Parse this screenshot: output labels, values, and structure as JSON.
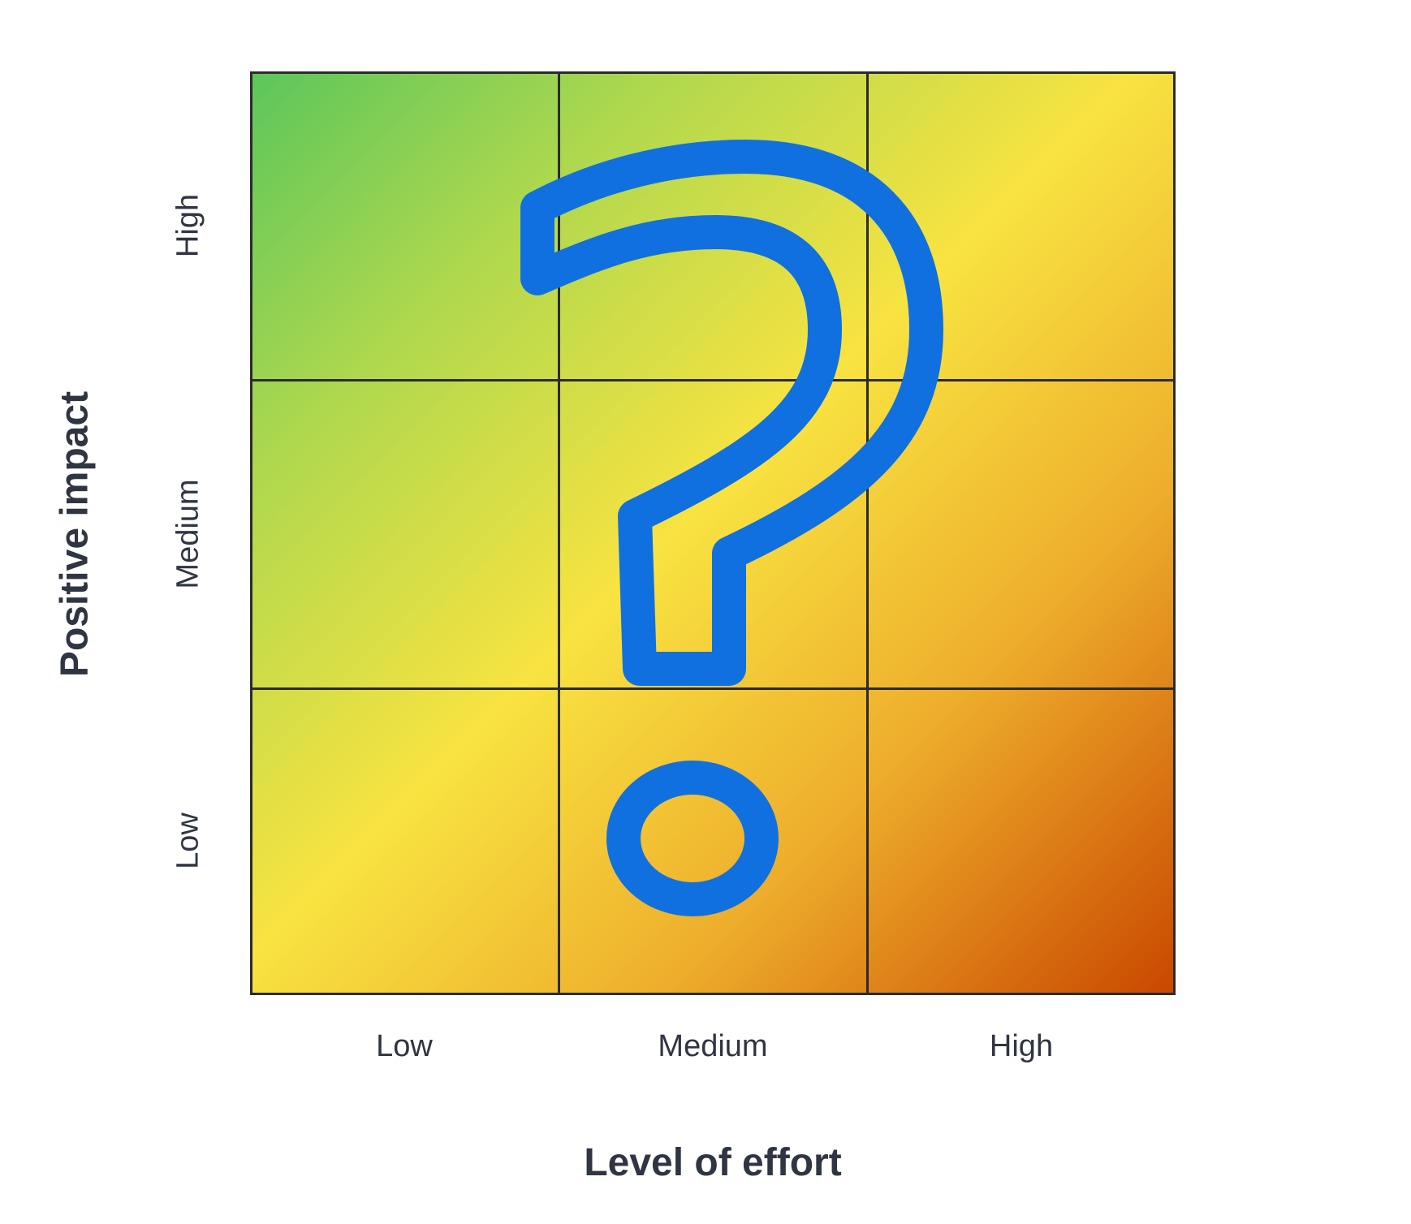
{
  "axes": {
    "x_label": "Level of effort",
    "y_label": "Positive impact",
    "x_ticks": [
      "Low",
      "Medium",
      "High"
    ],
    "y_ticks": [
      "Low",
      "Medium",
      "High"
    ]
  },
  "overlay": {
    "icon": "question-mark-icon",
    "color": "#1170e0"
  },
  "colors": {
    "gradient_start": "#5cc65b",
    "gradient_mid": "#f8e341",
    "gradient_end": "#c94800",
    "grid_line": "#2b2b2b"
  }
}
